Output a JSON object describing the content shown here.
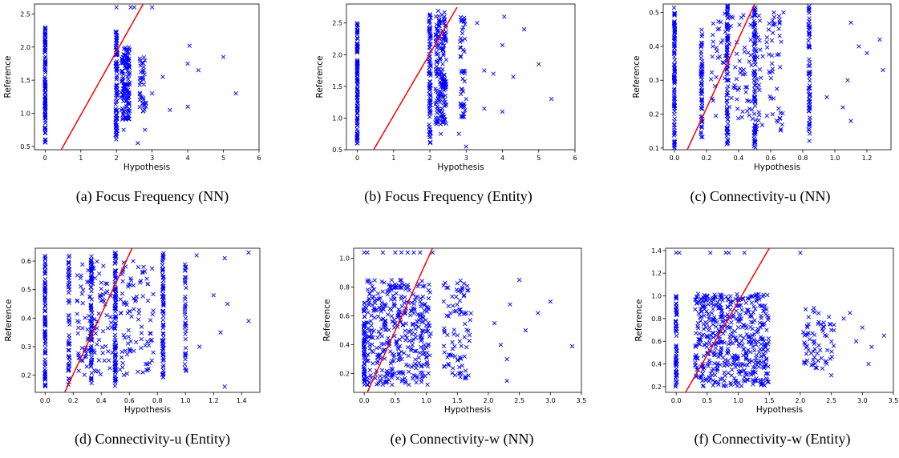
{
  "chart_data": [
    {
      "type": "scatter",
      "caption": "(a) Focus Frequency (NN)",
      "xlabel": "Hypothesis",
      "ylabel": "Reference",
      "xlim": [
        -0.3,
        6.0
      ],
      "ylim": [
        0.45,
        2.65
      ],
      "xticks": [
        0,
        1,
        2,
        3,
        4,
        5,
        6
      ],
      "yticks": [
        0.5,
        1.0,
        1.5,
        2.0,
        2.5
      ],
      "marker_color": "#0000ff",
      "line_color": "#ff0000",
      "fit_line": [
        [
          0.45,
          0.45
        ],
        [
          2.75,
          2.65
        ]
      ],
      "clusters": [
        {
          "x": 0.0,
          "y": [
            0.55,
            2.3
          ],
          "n": 120,
          "spread": 0.02
        },
        {
          "x": 2.0,
          "y": [
            0.6,
            2.25
          ],
          "n": 90,
          "spread": 0.05
        },
        {
          "x": 2.25,
          "y": [
            0.9,
            2.0
          ],
          "n": 140,
          "spread": 0.25
        },
        {
          "x": 2.75,
          "y": [
            1.0,
            1.9
          ],
          "n": 40,
          "spread": 0.2
        }
      ],
      "points": [
        [
          2.0,
          2.6
        ],
        [
          2.4,
          2.6
        ],
        [
          2.5,
          2.6
        ],
        [
          3.0,
          2.6
        ],
        [
          2.6,
          0.55
        ],
        [
          3.3,
          1.55
        ],
        [
          3.5,
          1.05
        ],
        [
          4.0,
          1.1
        ],
        [
          4.0,
          1.75
        ],
        [
          4.05,
          2.02
        ],
        [
          4.3,
          1.65
        ],
        [
          5.0,
          1.85
        ],
        [
          5.35,
          1.3
        ],
        [
          3.0,
          1.3
        ],
        [
          2.8,
          0.75
        ],
        [
          2.2,
          0.75
        ]
      ]
    },
    {
      "type": "scatter",
      "caption": "(b) Focus Frequency (Entity)",
      "xlabel": "Hypothesis",
      "ylabel": "Reference",
      "xlim": [
        -0.3,
        6.0
      ],
      "ylim": [
        0.5,
        2.8
      ],
      "xticks": [
        0,
        1,
        2,
        3,
        4,
        5,
        6
      ],
      "yticks": [
        0.5,
        1.0,
        1.5,
        2.0,
        2.5
      ],
      "marker_color": "#0000ff",
      "line_color": "#ff0000",
      "fit_line": [
        [
          0.45,
          0.5
        ],
        [
          2.75,
          2.75
        ]
      ],
      "clusters": [
        {
          "x": 0.0,
          "y": [
            0.6,
            2.55
          ],
          "n": 120,
          "spread": 0.02
        },
        {
          "x": 2.0,
          "y": [
            0.6,
            2.7
          ],
          "n": 90,
          "spread": 0.05
        },
        {
          "x": 2.3,
          "y": [
            0.9,
            2.7
          ],
          "n": 180,
          "spread": 0.3
        },
        {
          "x": 2.9,
          "y": [
            1.0,
            2.6
          ],
          "n": 50,
          "spread": 0.15
        }
      ],
      "points": [
        [
          3.3,
          2.5
        ],
        [
          3.5,
          1.75
        ],
        [
          3.75,
          1.7
        ],
        [
          4.0,
          2.15
        ],
        [
          4.05,
          2.6
        ],
        [
          4.0,
          1.1
        ],
        [
          4.3,
          1.65
        ],
        [
          4.6,
          2.4
        ],
        [
          5.0,
          1.85
        ],
        [
          5.35,
          1.3
        ],
        [
          3.0,
          0.55
        ],
        [
          2.8,
          0.75
        ],
        [
          2.3,
          0.75
        ],
        [
          3.5,
          1.15
        ],
        [
          3.0,
          1.3
        ]
      ]
    },
    {
      "type": "scatter",
      "caption": "(c) Connectivity-u (NN)",
      "xlabel": "Hypothesis",
      "ylabel": "Reference",
      "xlim": [
        -0.07,
        1.35
      ],
      "ylim": [
        0.095,
        0.525
      ],
      "xticks": [
        0.0,
        0.2,
        0.4,
        0.6,
        0.8,
        1.0,
        1.2
      ],
      "yticks": [
        0.1,
        0.2,
        0.3,
        0.4,
        0.5
      ],
      "marker_color": "#0000ff",
      "line_color": "#ff0000",
      "fit_line": [
        [
          0.08,
          0.095
        ],
        [
          0.5,
          0.525
        ]
      ],
      "clusters": [
        {
          "x": 0.0,
          "y": [
            0.1,
            0.52
          ],
          "n": 110,
          "spread": 0.005
        },
        {
          "x": 0.17,
          "y": [
            0.1,
            0.45
          ],
          "n": 60,
          "spread": 0.01
        },
        {
          "x": 0.33,
          "y": [
            0.11,
            0.52
          ],
          "n": 90,
          "spread": 0.01
        },
        {
          "x": 0.5,
          "y": [
            0.1,
            0.52
          ],
          "n": 90,
          "spread": 0.01
        },
        {
          "x": 0.84,
          "y": [
            0.12,
            0.52
          ],
          "n": 70,
          "spread": 0.01
        },
        {
          "x": 0.45,
          "y": [
            0.15,
            0.5
          ],
          "n": 160,
          "spread": 0.45
        }
      ],
      "points": [
        [
          1.28,
          0.42
        ],
        [
          1.3,
          0.33
        ],
        [
          1.2,
          0.38
        ],
        [
          1.1,
          0.18
        ],
        [
          1.1,
          0.47
        ],
        [
          1.08,
          0.3
        ],
        [
          0.95,
          0.25
        ],
        [
          1.05,
          0.22
        ],
        [
          0.62,
          0.5
        ],
        [
          0.68,
          0.5
        ],
        [
          1.15,
          0.4
        ]
      ]
    },
    {
      "type": "scatter",
      "caption": "(d) Connectivity-u (Entity)",
      "xlabel": "Hypothesis",
      "ylabel": "Reference",
      "xlim": [
        -0.07,
        1.53
      ],
      "ylim": [
        0.14,
        0.645
      ],
      "xticks": [
        0.0,
        0.2,
        0.4,
        0.6,
        0.8,
        1.0,
        1.2,
        1.4
      ],
      "yticks": [
        0.2,
        0.3,
        0.4,
        0.5,
        0.6
      ],
      "marker_color": "#0000ff",
      "line_color": "#ff0000",
      "fit_line": [
        [
          0.14,
          0.14
        ],
        [
          0.62,
          0.645
        ]
      ],
      "clusters": [
        {
          "x": 0.0,
          "y": [
            0.16,
            0.62
          ],
          "n": 100,
          "spread": 0.005
        },
        {
          "x": 0.17,
          "y": [
            0.16,
            0.62
          ],
          "n": 60,
          "spread": 0.01
        },
        {
          "x": 0.33,
          "y": [
            0.17,
            0.62
          ],
          "n": 80,
          "spread": 0.01
        },
        {
          "x": 0.5,
          "y": [
            0.16,
            0.63
          ],
          "n": 100,
          "spread": 0.01
        },
        {
          "x": 0.84,
          "y": [
            0.18,
            0.63
          ],
          "n": 80,
          "spread": 0.01
        },
        {
          "x": 1.0,
          "y": [
            0.2,
            0.6
          ],
          "n": 40,
          "spread": 0.01
        },
        {
          "x": 0.5,
          "y": [
            0.2,
            0.6
          ],
          "n": 200,
          "spread": 0.55
        }
      ],
      "points": [
        [
          1.45,
          0.63
        ],
        [
          1.45,
          0.39
        ],
        [
          1.28,
          0.16
        ],
        [
          1.28,
          0.61
        ],
        [
          1.3,
          0.45
        ],
        [
          1.25,
          0.35
        ],
        [
          1.2,
          0.48
        ],
        [
          1.08,
          0.62
        ],
        [
          1.1,
          0.3
        ]
      ]
    },
    {
      "type": "scatter",
      "caption": "(e) Connectivity-w (NN)",
      "xlabel": "Hypothesis",
      "ylabel": "Reference",
      "xlim": [
        -0.17,
        3.5
      ],
      "ylim": [
        0.07,
        1.07
      ],
      "xticks": [
        0.0,
        0.5,
        1.0,
        1.5,
        2.0,
        2.5,
        3.0,
        3.5
      ],
      "yticks": [
        0.2,
        0.4,
        0.6,
        0.8,
        1.0
      ],
      "marker_color": "#0000ff",
      "line_color": "#ff0000",
      "fit_line": [
        [
          0.05,
          0.07
        ],
        [
          1.1,
          1.07
        ]
      ],
      "clusters": [
        {
          "x": 0.0,
          "y": [
            0.12,
            0.7
          ],
          "n": 70,
          "spread": 0.02
        },
        {
          "x": 0.55,
          "y": [
            0.12,
            0.85
          ],
          "n": 400,
          "spread": 1.05
        },
        {
          "x": 1.5,
          "y": [
            0.15,
            0.85
          ],
          "n": 90,
          "spread": 0.45
        }
      ],
      "points": [
        [
          0.0,
          1.04
        ],
        [
          0.05,
          1.04
        ],
        [
          0.3,
          1.04
        ],
        [
          0.5,
          1.04
        ],
        [
          0.6,
          1.04
        ],
        [
          0.7,
          1.04
        ],
        [
          0.8,
          1.04
        ],
        [
          0.9,
          1.04
        ],
        [
          1.1,
          1.04
        ],
        [
          3.35,
          0.39
        ],
        [
          3.0,
          0.7
        ],
        [
          2.8,
          0.62
        ],
        [
          2.5,
          0.85
        ],
        [
          2.35,
          0.68
        ],
        [
          2.3,
          0.3
        ],
        [
          2.2,
          0.4
        ],
        [
          2.1,
          0.55
        ],
        [
          2.6,
          0.5
        ],
        [
          2.3,
          0.15
        ]
      ]
    },
    {
      "type": "scatter",
      "caption": "(f) Connectivity-w (Entity)",
      "xlabel": "Hypothesis",
      "ylabel": "Reference",
      "xlim": [
        -0.17,
        3.5
      ],
      "ylim": [
        0.15,
        1.42
      ],
      "xticks": [
        0.0,
        0.5,
        1.0,
        1.5,
        2.0,
        2.5,
        3.0,
        3.5
      ],
      "yticks": [
        0.2,
        0.4,
        0.6,
        0.8,
        1.0,
        1.2,
        1.4
      ],
      "marker_color": "#0000ff",
      "line_color": "#ff0000",
      "fit_line": [
        [
          0.15,
          0.15
        ],
        [
          1.5,
          1.42
        ]
      ],
      "clusters": [
        {
          "x": 0.0,
          "y": [
            0.2,
            1.0
          ],
          "n": 70,
          "spread": 0.02
        },
        {
          "x": 0.9,
          "y": [
            0.2,
            1.02
          ],
          "n": 520,
          "spread": 1.2
        },
        {
          "x": 2.3,
          "y": [
            0.35,
            0.9
          ],
          "n": 70,
          "spread": 0.5
        }
      ],
      "points": [
        [
          0.0,
          1.38
        ],
        [
          0.05,
          1.38
        ],
        [
          0.55,
          1.38
        ],
        [
          0.8,
          1.38
        ],
        [
          0.85,
          1.38
        ],
        [
          1.1,
          1.38
        ],
        [
          2.0,
          1.38
        ],
        [
          3.35,
          0.65
        ],
        [
          3.15,
          0.55
        ],
        [
          3.1,
          0.4
        ],
        [
          3.0,
          0.72
        ],
        [
          2.9,
          0.6
        ],
        [
          2.8,
          0.85
        ],
        [
          2.7,
          0.8
        ],
        [
          2.5,
          0.7
        ],
        [
          2.5,
          0.3
        ]
      ]
    }
  ]
}
